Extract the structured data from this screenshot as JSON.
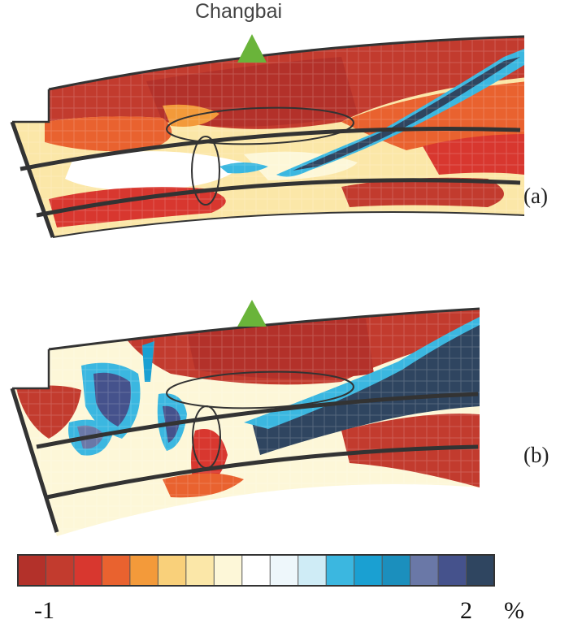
{
  "figure": {
    "volcano_label": "Changbai",
    "panels": [
      {
        "label": "(a)"
      },
      {
        "label": "(b)"
      }
    ]
  },
  "colorbar": {
    "min_label": "-1",
    "max_label": "2",
    "unit_label": "%",
    "colors": [
      "#b3312a",
      "#c23b2e",
      "#d8372f",
      "#e9622f",
      "#f39a3a",
      "#f9d07a",
      "#fbe7a8",
      "#fdf7d8",
      "#ffffff",
      "#eef7fb",
      "#cfecf6",
      "#3bb7e0",
      "#1aa0d2",
      "#1b8fbd",
      "#6a78a7",
      "#45528c",
      "#2f4560"
    ]
  },
  "colors": {
    "slow": "#c0392b",
    "fast": "#2f4a6b",
    "volcano_marker": "#6ab43a",
    "boundary_line": "#333333"
  }
}
